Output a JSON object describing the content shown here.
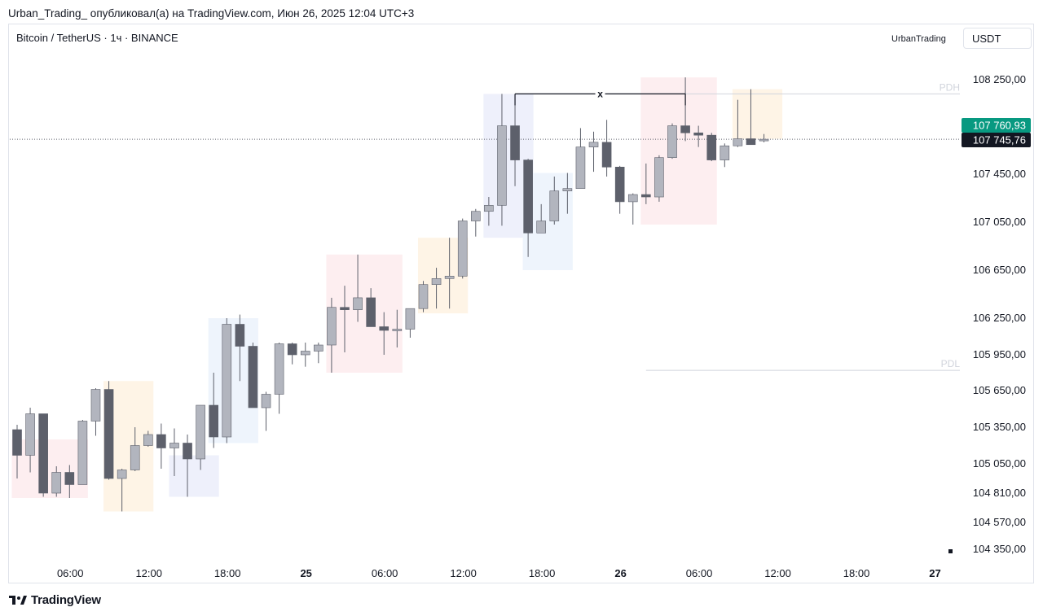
{
  "header": {
    "publication": "Urban_Trading_ опубликовал(а) на TradingView.com, Июн 26, 2025 12:04 UTC+3",
    "symbol": "Bitcoin / TetherUS · 1ч · BINANCE",
    "author": "UrbanTrading",
    "currency": "USDT"
  },
  "footer": {
    "brand": "TradingView"
  },
  "chart_data": {
    "type": "candlestick",
    "interval": "1h",
    "x_tick_labels": [
      "06:00",
      "12:00",
      "18:00",
      "25",
      "06:00",
      "12:00",
      "18:00",
      "26",
      "06:00",
      "12:00",
      "18:00",
      "27"
    ],
    "x_tick_bold": [
      false,
      false,
      false,
      true,
      false,
      false,
      false,
      true,
      false,
      false,
      false,
      true
    ],
    "y_tick_labels": [
      "108 250,00",
      "107 450,00",
      "107 050,00",
      "106 650,00",
      "106 250,00",
      "105 950,00",
      "105 650,00",
      "105 350,00",
      "105 050,00",
      "104 810,00",
      "104 570,00",
      "104 350,00"
    ],
    "y_tick_values": [
      108250,
      107450,
      107050,
      106650,
      106250,
      105950,
      105650,
      105350,
      105050,
      104810,
      104570,
      104350
    ],
    "price_labels": [
      {
        "text": "107 760,93",
        "value": 107760.93,
        "bg": "#089981"
      },
      {
        "text": "107 745,76",
        "value": 107745.76,
        "bg": "#131722"
      }
    ],
    "current_price": 107745.76,
    "levels": [
      {
        "label": "PDH",
        "value": 108130,
        "start_index": 38
      },
      {
        "label": "PDL",
        "value": 105820,
        "start_index": 48
      }
    ],
    "annotation": {
      "text": "x",
      "value": 108130,
      "start_index": 38,
      "end_index": 51
    },
    "highlight_boxes": [
      {
        "start_index": 0,
        "end_index": 5,
        "high": 105250,
        "low": 104770,
        "color": "#fdeef0"
      },
      {
        "start_index": 7,
        "end_index": 10,
        "high": 105730,
        "low": 104660,
        "color": "#fef4e6"
      },
      {
        "start_index": 12,
        "end_index": 15,
        "high": 105120,
        "low": 104780,
        "color": "#eef0fb"
      },
      {
        "start_index": 15,
        "end_index": 18,
        "high": 106250,
        "low": 105220,
        "color": "#eef4fc"
      },
      {
        "start_index": 24,
        "end_index": 29,
        "high": 106780,
        "low": 105800,
        "color": "#fdeef0"
      },
      {
        "start_index": 31,
        "end_index": 34,
        "high": 106920,
        "low": 106290,
        "color": "#fef4e6"
      },
      {
        "start_index": 36,
        "end_index": 39,
        "high": 108130,
        "low": 106920,
        "color": "#eef0fb"
      },
      {
        "start_index": 39,
        "end_index": 42,
        "high": 107460,
        "low": 106650,
        "color": "#eef4fc"
      },
      {
        "start_index": 48,
        "end_index": 53,
        "high": 108270,
        "low": 107030,
        "color": "#fdeef0"
      },
      {
        "start_index": 55,
        "end_index": 58,
        "high": 108170,
        "low": 107750,
        "color": "#fef4e6"
      }
    ],
    "candles": [
      {
        "t": "24 03:00",
        "o": 105330,
        "h": 105370,
        "l": 104930,
        "c": 105120
      },
      {
        "t": "24 04:00",
        "o": 105120,
        "h": 105510,
        "l": 104980,
        "c": 105460
      },
      {
        "t": "24 05:00",
        "o": 105460,
        "h": 105460,
        "l": 104780,
        "c": 104810
      },
      {
        "t": "24 06:00",
        "o": 104810,
        "h": 105030,
        "l": 104780,
        "c": 104980
      },
      {
        "t": "24 07:00",
        "o": 104980,
        "h": 105040,
        "l": 104770,
        "c": 104880
      },
      {
        "t": "24 08:00",
        "o": 104880,
        "h": 105410,
        "l": 104880,
        "c": 105400
      },
      {
        "t": "24 09:00",
        "o": 105400,
        "h": 105670,
        "l": 105280,
        "c": 105660
      },
      {
        "t": "24 10:00",
        "o": 105660,
        "h": 105730,
        "l": 104920,
        "c": 104930
      },
      {
        "t": "24 11:00",
        "o": 104930,
        "h": 105010,
        "l": 104660,
        "c": 105000
      },
      {
        "t": "24 12:00",
        "o": 105000,
        "h": 105350,
        "l": 104990,
        "c": 105200
      },
      {
        "t": "24 13:00",
        "o": 105200,
        "h": 105320,
        "l": 105190,
        "c": 105290
      },
      {
        "t": "24 14:00",
        "o": 105290,
        "h": 105380,
        "l": 105010,
        "c": 105180
      },
      {
        "t": "24 15:00",
        "o": 105180,
        "h": 105340,
        "l": 104950,
        "c": 105220
      },
      {
        "t": "24 16:00",
        "o": 105220,
        "h": 105290,
        "l": 104780,
        "c": 105090
      },
      {
        "t": "24 17:00",
        "o": 105090,
        "h": 105500,
        "l": 105000,
        "c": 105530
      },
      {
        "t": "24 18:00",
        "o": 105530,
        "h": 105800,
        "l": 105180,
        "c": 105270
      },
      {
        "t": "24 19:00",
        "o": 105270,
        "h": 106250,
        "l": 105220,
        "c": 106200
      },
      {
        "t": "24 20:00",
        "o": 106200,
        "h": 106280,
        "l": 105730,
        "c": 106020
      },
      {
        "t": "24 21:00",
        "o": 106020,
        "h": 106050,
        "l": 105510,
        "c": 105510
      },
      {
        "t": "24 22:00",
        "o": 105510,
        "h": 105640,
        "l": 105320,
        "c": 105620
      },
      {
        "t": "24 23:00",
        "o": 105620,
        "h": 106050,
        "l": 105460,
        "c": 106040
      },
      {
        "t": "25 00:00",
        "o": 106040,
        "h": 106050,
        "l": 105870,
        "c": 105950
      },
      {
        "t": "25 01:00",
        "o": 105950,
        "h": 106050,
        "l": 105850,
        "c": 105980
      },
      {
        "t": "25 02:00",
        "o": 105980,
        "h": 106050,
        "l": 105880,
        "c": 106030
      },
      {
        "t": "25 03:00",
        "o": 106030,
        "h": 106420,
        "l": 105800,
        "c": 106340
      },
      {
        "t": "25 04:00",
        "o": 106340,
        "h": 106520,
        "l": 105970,
        "c": 106320
      },
      {
        "t": "25 05:00",
        "o": 106320,
        "h": 106780,
        "l": 106220,
        "c": 106420
      },
      {
        "t": "25 06:00",
        "o": 106420,
        "h": 106500,
        "l": 106210,
        "c": 106180
      },
      {
        "t": "25 07:00",
        "o": 106180,
        "h": 106300,
        "l": 105950,
        "c": 106150
      },
      {
        "t": "25 08:00",
        "o": 106150,
        "h": 106320,
        "l": 106010,
        "c": 106160
      },
      {
        "t": "25 09:00",
        "o": 106160,
        "h": 106330,
        "l": 106090,
        "c": 106330
      },
      {
        "t": "25 10:00",
        "o": 106330,
        "h": 106560,
        "l": 106300,
        "c": 106530
      },
      {
        "t": "25 11:00",
        "o": 106530,
        "h": 106670,
        "l": 106330,
        "c": 106580
      },
      {
        "t": "25 12:00",
        "o": 106580,
        "h": 106920,
        "l": 106330,
        "c": 106600
      },
      {
        "t": "25 13:00",
        "o": 106600,
        "h": 107080,
        "l": 106580,
        "c": 107060
      },
      {
        "t": "25 14:00",
        "o": 107060,
        "h": 107160,
        "l": 106930,
        "c": 107140
      },
      {
        "t": "25 15:00",
        "o": 107140,
        "h": 107260,
        "l": 107020,
        "c": 107190
      },
      {
        "t": "25 16:00",
        "o": 107190,
        "h": 108130,
        "l": 107020,
        "c": 107860
      },
      {
        "t": "25 17:00",
        "o": 107860,
        "h": 108130,
        "l": 107350,
        "c": 107570
      },
      {
        "t": "25 18:00",
        "o": 107570,
        "h": 107580,
        "l": 106760,
        "c": 106960
      },
      {
        "t": "25 19:00",
        "o": 106960,
        "h": 107200,
        "l": 106980,
        "c": 107060
      },
      {
        "t": "25 20:00",
        "o": 107060,
        "h": 107430,
        "l": 107030,
        "c": 107310
      },
      {
        "t": "25 21:00",
        "o": 107310,
        "h": 107460,
        "l": 107120,
        "c": 107330
      },
      {
        "t": "25 22:00",
        "o": 107330,
        "h": 107840,
        "l": 107350,
        "c": 107680
      },
      {
        "t": "25 23:00",
        "o": 107680,
        "h": 107810,
        "l": 107470,
        "c": 107720
      },
      {
        "t": "26 00:00",
        "o": 107720,
        "h": 107910,
        "l": 107430,
        "c": 107510
      },
      {
        "t": "26 01:00",
        "o": 107510,
        "h": 107520,
        "l": 107120,
        "c": 107220
      },
      {
        "t": "26 02:00",
        "o": 107220,
        "h": 107290,
        "l": 107030,
        "c": 107280
      },
      {
        "t": "26 03:00",
        "o": 107280,
        "h": 107540,
        "l": 107200,
        "c": 107260
      },
      {
        "t": "26 04:00",
        "o": 107260,
        "h": 107610,
        "l": 107220,
        "c": 107590
      },
      {
        "t": "26 05:00",
        "o": 107590,
        "h": 107880,
        "l": 107580,
        "c": 107860
      },
      {
        "t": "26 06:00",
        "o": 107860,
        "h": 108270,
        "l": 107730,
        "c": 107800
      },
      {
        "t": "26 07:00",
        "o": 107800,
        "h": 107860,
        "l": 107680,
        "c": 107780
      },
      {
        "t": "26 08:00",
        "o": 107780,
        "h": 107800,
        "l": 107560,
        "c": 107570
      },
      {
        "t": "26 09:00",
        "o": 107570,
        "h": 107710,
        "l": 107510,
        "c": 107690
      },
      {
        "t": "26 10:00",
        "o": 107690,
        "h": 108080,
        "l": 107680,
        "c": 107750
      },
      {
        "t": "26 11:00",
        "o": 107750,
        "h": 108170,
        "l": 107710,
        "c": 107700
      },
      {
        "t": "26 12:00",
        "o": 107740,
        "h": 107790,
        "l": 107720,
        "c": 107745.76
      }
    ],
    "colors": {
      "up": "#b2b5be",
      "down": "#5d606b",
      "grid": "#f0f3fa",
      "text": "#131722"
    }
  }
}
